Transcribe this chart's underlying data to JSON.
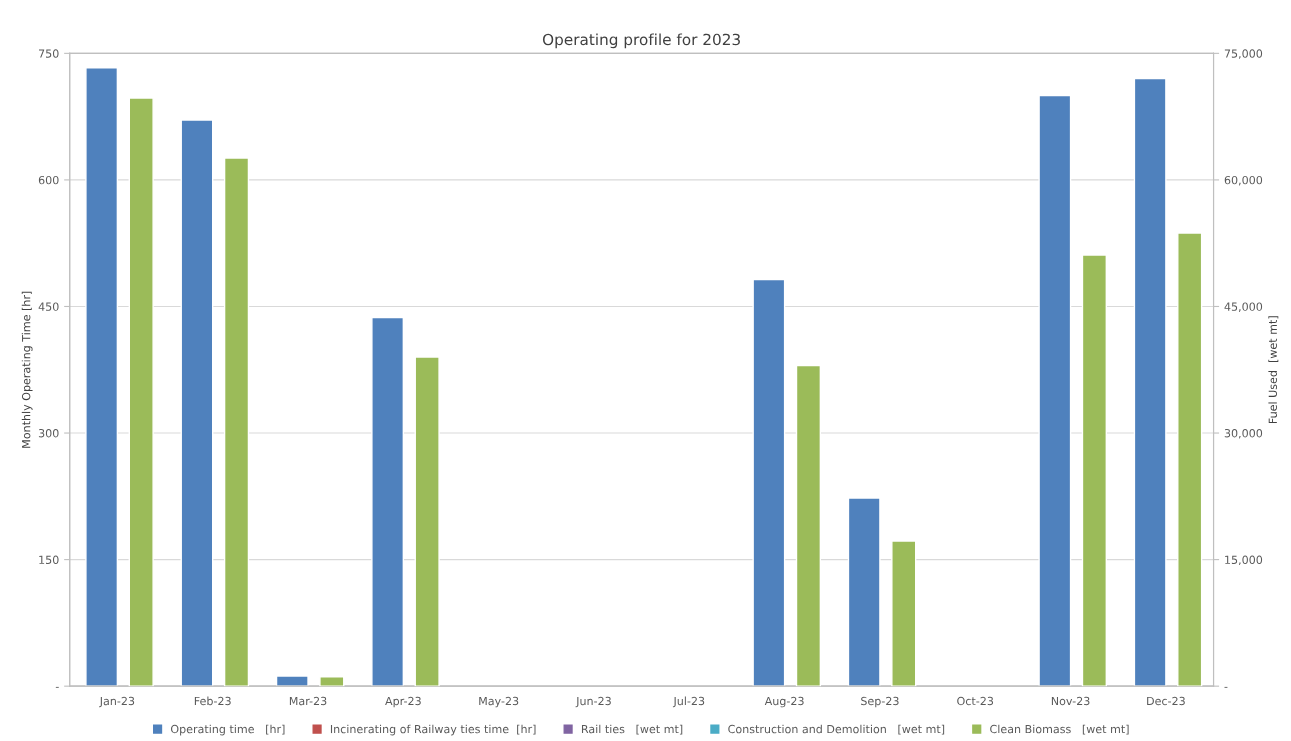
{
  "chart_data": {
    "type": "bar",
    "title": "Operating profile for 2023",
    "ylabel": "Monthly Operating Time [hr]",
    "y2label": "Fuel Used  [wet mt]",
    "categories": [
      "Jan-23",
      "Feb-23",
      "Mar-23",
      "Apr-23",
      "May-23",
      "Jun-23",
      "Jul-23",
      "Aug-23",
      "Sep-23",
      "Oct-23",
      "Nov-23",
      "Dec-23"
    ],
    "series": [
      {
        "name": "Operating time   [hr]",
        "color": "#4f81bd",
        "axis": "y",
        "values": [
          733,
          671,
          12,
          437,
          null,
          null,
          null,
          482,
          223,
          null,
          700,
          720
        ]
      },
      {
        "name": "Incinerating of Railway ties time  [hr]",
        "color": "#c0504d",
        "axis": "y",
        "values": [
          null,
          null,
          null,
          null,
          null,
          null,
          null,
          null,
          null,
          null,
          null,
          null
        ]
      },
      {
        "name": "Rail ties   [wet mt]",
        "color": "#8064a2",
        "axis": "y2",
        "values": [
          null,
          null,
          null,
          null,
          null,
          null,
          null,
          null,
          null,
          null,
          null,
          null
        ]
      },
      {
        "name": "Construction and Demolition   [wet mt]",
        "color": "#4bacc6",
        "axis": "y2",
        "values": [
          null,
          null,
          null,
          null,
          null,
          null,
          null,
          null,
          null,
          null,
          null,
          null
        ]
      },
      {
        "name": "Clean Biomass   [wet mt]",
        "color": "#9bbb59",
        "axis": "y2",
        "values": [
          69700,
          62600,
          1100,
          39000,
          null,
          null,
          null,
          38000,
          17200,
          null,
          51100,
          53700
        ]
      }
    ],
    "ylim": [
      0,
      750
    ],
    "yticks": [
      {
        "value": 0,
        "label": "-"
      },
      150,
      300,
      450,
      600,
      750
    ],
    "y2lim": [
      0,
      75000
    ],
    "y2ticks": [
      {
        "value": 0,
        "label": "-"
      },
      {
        "value": 15000,
        "label": "15,000"
      },
      {
        "value": 30000,
        "label": "30,000"
      },
      {
        "value": 45000,
        "label": "45,000"
      },
      {
        "value": 60000,
        "label": "60,000"
      },
      {
        "value": 75000,
        "label": "75,000"
      }
    ],
    "grid": "y",
    "legend": "bottom"
  }
}
